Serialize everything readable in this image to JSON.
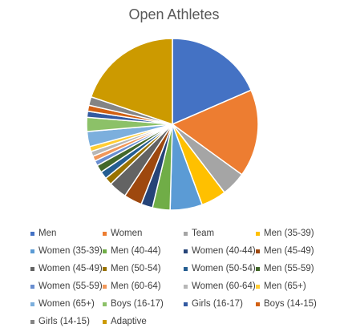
{
  "chart_data": {
    "type": "pie",
    "title": "Open Athletes",
    "categories": [
      "Men",
      "Women",
      "Team",
      "Men (35-39)",
      "Women (35-39)",
      "Men (40-44)",
      "Women (40-44)",
      "Men (45-49)",
      "Women (45-49)",
      "Men (50-54)",
      "Women (50-54)",
      "Men (55-59)",
      "Women (55-59)",
      "Men (60-64)",
      "Women (60-64)",
      "Men (65+)",
      "Women (65+)",
      "Boys (16-17)",
      "Girls (16-17)",
      "Boys (14-15)",
      "Girls (14-15)",
      "Adaptive"
    ],
    "values": [
      19.5,
      17.4,
      4.9,
      5.0,
      6.4,
      3.5,
      2.3,
      3.6,
      3.6,
      1.5,
      1.5,
      1.5,
      1.0,
      1.0,
      1.0,
      1.0,
      3.0,
      2.8,
      1.2,
      1.2,
      1.7,
      20.9
    ],
    "colors": [
      "#4472C4",
      "#ED7D31",
      "#A5A5A5",
      "#FFC000",
      "#5B9BD5",
      "#70AD47",
      "#264478",
      "#9E480E",
      "#636363",
      "#997300",
      "#255E91",
      "#43682B",
      "#698ED0",
      "#F1975A",
      "#B7B7B7",
      "#FFCD33",
      "#7CAFDD",
      "#8CC168",
      "#335AA1",
      "#D26012",
      "#848484",
      "#CC9A00"
    ],
    "start_angle_deg": 0,
    "direction": "clockwise",
    "legend_position": "bottom"
  }
}
